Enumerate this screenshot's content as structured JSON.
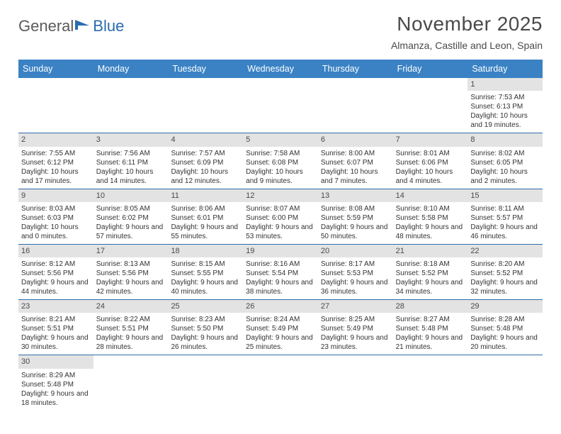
{
  "logo": {
    "part1": "General",
    "part2": "Blue"
  },
  "title": "November 2025",
  "location": "Almanza, Castille and Leon, Spain",
  "colors": {
    "header_bg": "#3a82c4",
    "header_text": "#ffffff",
    "daynum_bg": "#e3e3e3",
    "rule": "#2e6da8",
    "text": "#333333",
    "logo_gray": "#5a5a5a",
    "logo_blue": "#2a6bb0"
  },
  "typography": {
    "title_fontsize": 28,
    "location_fontsize": 14,
    "header_fontsize": 12.5,
    "cell_fontsize": 10
  },
  "day_names": [
    "Sunday",
    "Monday",
    "Tuesday",
    "Wednesday",
    "Thursday",
    "Friday",
    "Saturday"
  ],
  "weeks": [
    [
      {
        "empty": true
      },
      {
        "empty": true
      },
      {
        "empty": true
      },
      {
        "empty": true
      },
      {
        "empty": true
      },
      {
        "empty": true
      },
      {
        "day": "1",
        "sunrise": "Sunrise: 7:53 AM",
        "sunset": "Sunset: 6:13 PM",
        "daylight": "Daylight: 10 hours and 19 minutes."
      }
    ],
    [
      {
        "day": "2",
        "sunrise": "Sunrise: 7:55 AM",
        "sunset": "Sunset: 6:12 PM",
        "daylight": "Daylight: 10 hours and 17 minutes."
      },
      {
        "day": "3",
        "sunrise": "Sunrise: 7:56 AM",
        "sunset": "Sunset: 6:11 PM",
        "daylight": "Daylight: 10 hours and 14 minutes."
      },
      {
        "day": "4",
        "sunrise": "Sunrise: 7:57 AM",
        "sunset": "Sunset: 6:09 PM",
        "daylight": "Daylight: 10 hours and 12 minutes."
      },
      {
        "day": "5",
        "sunrise": "Sunrise: 7:58 AM",
        "sunset": "Sunset: 6:08 PM",
        "daylight": "Daylight: 10 hours and 9 minutes."
      },
      {
        "day": "6",
        "sunrise": "Sunrise: 8:00 AM",
        "sunset": "Sunset: 6:07 PM",
        "daylight": "Daylight: 10 hours and 7 minutes."
      },
      {
        "day": "7",
        "sunrise": "Sunrise: 8:01 AM",
        "sunset": "Sunset: 6:06 PM",
        "daylight": "Daylight: 10 hours and 4 minutes."
      },
      {
        "day": "8",
        "sunrise": "Sunrise: 8:02 AM",
        "sunset": "Sunset: 6:05 PM",
        "daylight": "Daylight: 10 hours and 2 minutes."
      }
    ],
    [
      {
        "day": "9",
        "sunrise": "Sunrise: 8:03 AM",
        "sunset": "Sunset: 6:03 PM",
        "daylight": "Daylight: 10 hours and 0 minutes."
      },
      {
        "day": "10",
        "sunrise": "Sunrise: 8:05 AM",
        "sunset": "Sunset: 6:02 PM",
        "daylight": "Daylight: 9 hours and 57 minutes."
      },
      {
        "day": "11",
        "sunrise": "Sunrise: 8:06 AM",
        "sunset": "Sunset: 6:01 PM",
        "daylight": "Daylight: 9 hours and 55 minutes."
      },
      {
        "day": "12",
        "sunrise": "Sunrise: 8:07 AM",
        "sunset": "Sunset: 6:00 PM",
        "daylight": "Daylight: 9 hours and 53 minutes."
      },
      {
        "day": "13",
        "sunrise": "Sunrise: 8:08 AM",
        "sunset": "Sunset: 5:59 PM",
        "daylight": "Daylight: 9 hours and 50 minutes."
      },
      {
        "day": "14",
        "sunrise": "Sunrise: 8:10 AM",
        "sunset": "Sunset: 5:58 PM",
        "daylight": "Daylight: 9 hours and 48 minutes."
      },
      {
        "day": "15",
        "sunrise": "Sunrise: 8:11 AM",
        "sunset": "Sunset: 5:57 PM",
        "daylight": "Daylight: 9 hours and 46 minutes."
      }
    ],
    [
      {
        "day": "16",
        "sunrise": "Sunrise: 8:12 AM",
        "sunset": "Sunset: 5:56 PM",
        "daylight": "Daylight: 9 hours and 44 minutes."
      },
      {
        "day": "17",
        "sunrise": "Sunrise: 8:13 AM",
        "sunset": "Sunset: 5:56 PM",
        "daylight": "Daylight: 9 hours and 42 minutes."
      },
      {
        "day": "18",
        "sunrise": "Sunrise: 8:15 AM",
        "sunset": "Sunset: 5:55 PM",
        "daylight": "Daylight: 9 hours and 40 minutes."
      },
      {
        "day": "19",
        "sunrise": "Sunrise: 8:16 AM",
        "sunset": "Sunset: 5:54 PM",
        "daylight": "Daylight: 9 hours and 38 minutes."
      },
      {
        "day": "20",
        "sunrise": "Sunrise: 8:17 AM",
        "sunset": "Sunset: 5:53 PM",
        "daylight": "Daylight: 9 hours and 36 minutes."
      },
      {
        "day": "21",
        "sunrise": "Sunrise: 8:18 AM",
        "sunset": "Sunset: 5:52 PM",
        "daylight": "Daylight: 9 hours and 34 minutes."
      },
      {
        "day": "22",
        "sunrise": "Sunrise: 8:20 AM",
        "sunset": "Sunset: 5:52 PM",
        "daylight": "Daylight: 9 hours and 32 minutes."
      }
    ],
    [
      {
        "day": "23",
        "sunrise": "Sunrise: 8:21 AM",
        "sunset": "Sunset: 5:51 PM",
        "daylight": "Daylight: 9 hours and 30 minutes."
      },
      {
        "day": "24",
        "sunrise": "Sunrise: 8:22 AM",
        "sunset": "Sunset: 5:51 PM",
        "daylight": "Daylight: 9 hours and 28 minutes."
      },
      {
        "day": "25",
        "sunrise": "Sunrise: 8:23 AM",
        "sunset": "Sunset: 5:50 PM",
        "daylight": "Daylight: 9 hours and 26 minutes."
      },
      {
        "day": "26",
        "sunrise": "Sunrise: 8:24 AM",
        "sunset": "Sunset: 5:49 PM",
        "daylight": "Daylight: 9 hours and 25 minutes."
      },
      {
        "day": "27",
        "sunrise": "Sunrise: 8:25 AM",
        "sunset": "Sunset: 5:49 PM",
        "daylight": "Daylight: 9 hours and 23 minutes."
      },
      {
        "day": "28",
        "sunrise": "Sunrise: 8:27 AM",
        "sunset": "Sunset: 5:48 PM",
        "daylight": "Daylight: 9 hours and 21 minutes."
      },
      {
        "day": "29",
        "sunrise": "Sunrise: 8:28 AM",
        "sunset": "Sunset: 5:48 PM",
        "daylight": "Daylight: 9 hours and 20 minutes."
      }
    ],
    [
      {
        "day": "30",
        "sunrise": "Sunrise: 8:29 AM",
        "sunset": "Sunset: 5:48 PM",
        "daylight": "Daylight: 9 hours and 18 minutes."
      },
      {
        "empty": true
      },
      {
        "empty": true
      },
      {
        "empty": true
      },
      {
        "empty": true
      },
      {
        "empty": true
      },
      {
        "empty": true
      }
    ]
  ]
}
